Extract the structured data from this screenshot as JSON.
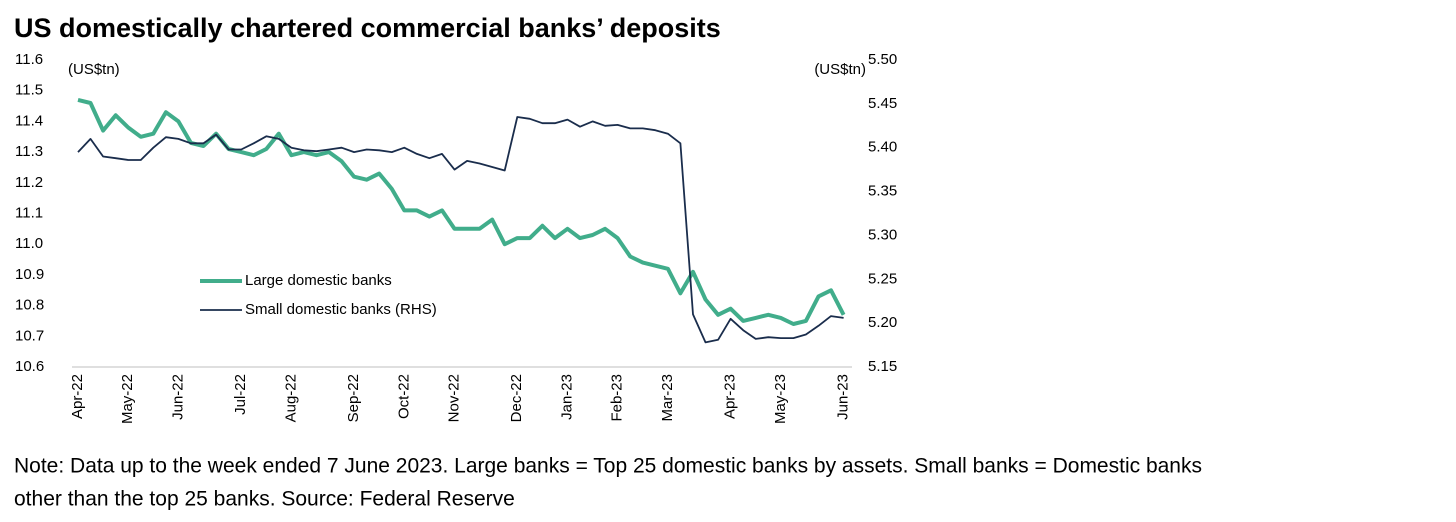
{
  "chart_data": {
    "type": "line",
    "title": "US domestically chartered commercial banks’ deposits",
    "y_label": "(US$tn)",
    "y2_label": "(US$tn)",
    "note": [
      "Note: Data up to the week ended 7 June 2023. Large banks = Top 25 domestic banks by assets. Small banks = Domestic banks",
      "other than the top 25 banks. Source: Federal Reserve"
    ],
    "legend": "center left",
    "categories": [
      "Apr-22",
      null,
      null,
      null,
      "May-22",
      null,
      null,
      null,
      "Jun-22",
      null,
      null,
      null,
      null,
      "Jul-22",
      null,
      null,
      null,
      "Aug-22",
      null,
      null,
      null,
      null,
      "Sep-22",
      null,
      null,
      null,
      "Oct-22",
      null,
      null,
      null,
      "Nov-22",
      null,
      null,
      null,
      null,
      "Dec-22",
      null,
      null,
      null,
      "Jan-23",
      null,
      null,
      null,
      "Feb-23",
      null,
      null,
      null,
      "Mar-23",
      null,
      null,
      null,
      null,
      "Apr-23",
      null,
      null,
      null,
      "May-23",
      null,
      null,
      null,
      null,
      "Jun-23"
    ],
    "ylim": [
      10.6,
      11.6
    ],
    "yticks": [
      10.6,
      10.7,
      10.8,
      10.9,
      {
        "value": 11,
        "label": "11.0"
      },
      11.1,
      11.2,
      11.3,
      11.4,
      11.5,
      11.6
    ],
    "y2lim": [
      5.15,
      5.5
    ],
    "y2ticks": [
      5.15,
      {
        "value": 5.2,
        "label": "5.20"
      },
      5.25,
      {
        "value": 5.3,
        "label": "5.30"
      },
      5.35,
      {
        "value": 5.4,
        "label": "5.40"
      },
      5.45,
      {
        "value": 5.5,
        "label": "5.50"
      }
    ],
    "series": [
      {
        "name": "Large domestic banks",
        "color": "#41ad8b",
        "axis": "y",
        "values": [
          11.47,
          11.46,
          11.37,
          11.42,
          11.38,
          11.35,
          11.36,
          11.43,
          11.4,
          11.33,
          11.32,
          11.36,
          11.31,
          11.3,
          11.29,
          11.31,
          11.36,
          11.29,
          11.3,
          11.29,
          11.3,
          11.27,
          11.22,
          11.21,
          11.23,
          11.18,
          11.11,
          11.11,
          11.09,
          11.11,
          11.05,
          11.05,
          11.05,
          11.08,
          11.0,
          11.02,
          11.02,
          11.06,
          11.02,
          11.05,
          11.02,
          11.03,
          11.05,
          11.02,
          10.96,
          10.94,
          10.93,
          10.92,
          10.84,
          10.91,
          10.82,
          10.77,
          10.79,
          10.75,
          10.76,
          10.77,
          10.76,
          10.74,
          10.75,
          10.83,
          10.85,
          10.77
        ]
      },
      {
        "name": "Small domestic banks (RHS)",
        "color": "#1a2d4c",
        "axis": "y2",
        "values": [
          5.395,
          5.41,
          5.39,
          5.388,
          5.386,
          5.386,
          5.4,
          5.412,
          5.41,
          5.405,
          5.405,
          5.415,
          5.398,
          5.398,
          5.405,
          5.413,
          5.41,
          5.4,
          5.397,
          5.396,
          5.398,
          5.4,
          5.395,
          5.398,
          5.397,
          5.395,
          5.4,
          5.393,
          5.388,
          5.393,
          5.375,
          5.385,
          5.382,
          5.378,
          5.374,
          5.435,
          5.433,
          5.428,
          5.428,
          5.432,
          5.424,
          5.43,
          5.425,
          5.426,
          5.422,
          5.422,
          5.42,
          5.416,
          5.405,
          5.21,
          5.178,
          5.181,
          5.205,
          5.192,
          5.182,
          5.184,
          5.183,
          5.183,
          5.187,
          5.197,
          5.208,
          5.206
        ]
      }
    ]
  }
}
